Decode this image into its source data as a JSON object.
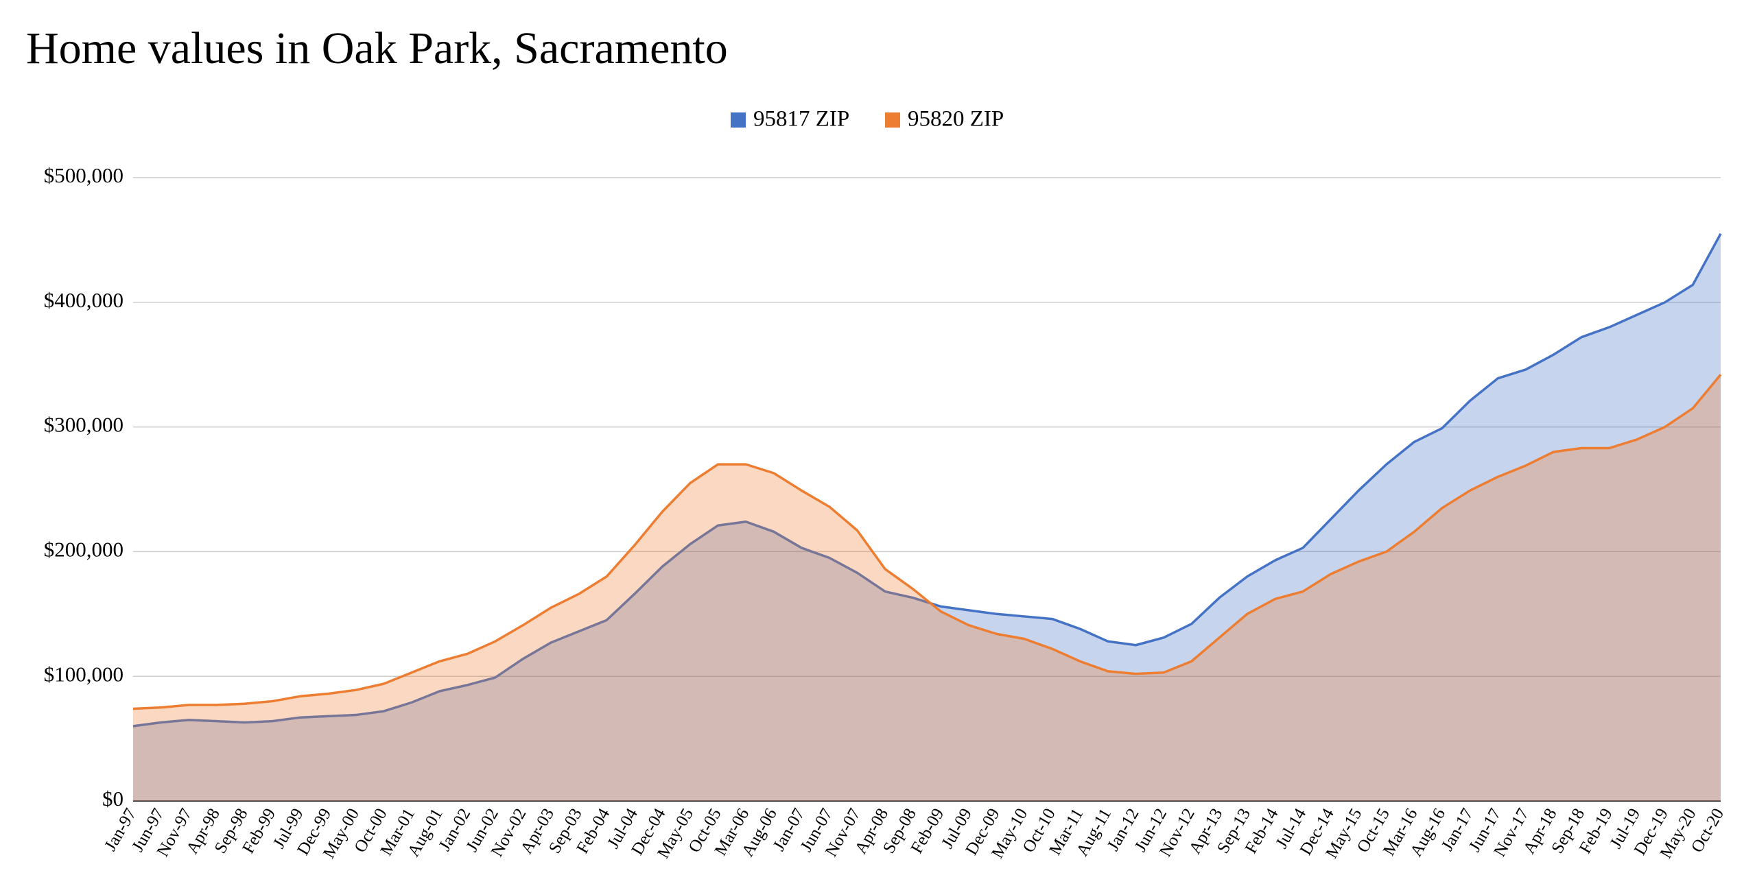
{
  "chart_data": {
    "type": "area",
    "title": "Home values in Oak Park, Sacramento",
    "legend": "top",
    "grid": true,
    "categories": [
      "Jan-97",
      "Jun-97",
      "Nov-97",
      "Apr-98",
      "Sep-98",
      "Feb-99",
      "Jul-99",
      "Dec-99",
      "May-00",
      "Oct-00",
      "Mar-01",
      "Aug-01",
      "Jan-02",
      "Jun-02",
      "Nov-02",
      "Apr-03",
      "Sep-03",
      "Feb-04",
      "Jul-04",
      "Dec-04",
      "May-05",
      "Oct-05",
      "Mar-06",
      "Aug-06",
      "Jan-07",
      "Jun-07",
      "Nov-07",
      "Apr-08",
      "Sep-08",
      "Feb-09",
      "Jul-09",
      "Dec-09",
      "May-10",
      "Oct-10",
      "Mar-11",
      "Aug-11",
      "Jan-12",
      "Jun-12",
      "Nov-12",
      "Apr-13",
      "Sep-13",
      "Feb-14",
      "Jul-14",
      "Dec-14",
      "May-15",
      "Oct-15",
      "Mar-16",
      "Aug-16",
      "Jan-17",
      "Jun-17",
      "Nov-17",
      "Apr-18",
      "Sep-18",
      "Feb-19",
      "Jul-19",
      "Dec-19",
      "May-20",
      "Oct-20"
    ],
    "series": [
      {
        "name": "95817 ZIP",
        "color": "#4472c4",
        "values": [
          60000,
          63000,
          65000,
          64000,
          63000,
          64000,
          67000,
          68000,
          69000,
          72000,
          79000,
          88000,
          93000,
          99000,
          114000,
          127000,
          136000,
          145000,
          166000,
          188000,
          206000,
          221000,
          224000,
          216000,
          203000,
          195000,
          183000,
          168000,
          163000,
          156000,
          153000,
          150000,
          148000,
          146000,
          138000,
          128000,
          125000,
          131000,
          142000,
          163000,
          180000,
          193000,
          203000,
          226000,
          249000,
          270000,
          288000,
          299000,
          321000,
          339000,
          346000,
          358000,
          372000,
          380000,
          390000,
          400000,
          414000,
          455000
        ]
      },
      {
        "name": "95820 ZIP",
        "color": "#ed7d31",
        "values": [
          74000,
          75000,
          77000,
          77000,
          78000,
          80000,
          84000,
          86000,
          89000,
          94000,
          103000,
          112000,
          118000,
          128000,
          141000,
          155000,
          166000,
          180000,
          205000,
          232000,
          255000,
          270000,
          270000,
          263000,
          249000,
          236000,
          217000,
          186000,
          170000,
          152000,
          141000,
          134000,
          130000,
          122000,
          112000,
          104000,
          102000,
          103000,
          112000,
          131000,
          150000,
          162000,
          168000,
          182000,
          192000,
          200000,
          216000,
          235000,
          249000,
          260000,
          269000,
          280000,
          283000,
          283000,
          290000,
          300000,
          315000,
          342000
        ]
      }
    ],
    "ylim": [
      0,
      500000
    ],
    "yticks": [
      {
        "value": 0,
        "label": "$0"
      },
      {
        "value": 100000,
        "label": "$100,000"
      },
      {
        "value": 200000,
        "label": "$200,000"
      },
      {
        "value": 300000,
        "label": "$300,000"
      },
      {
        "value": 400000,
        "label": "$400,000"
      },
      {
        "value": 500000,
        "label": "$500,000"
      }
    ]
  }
}
